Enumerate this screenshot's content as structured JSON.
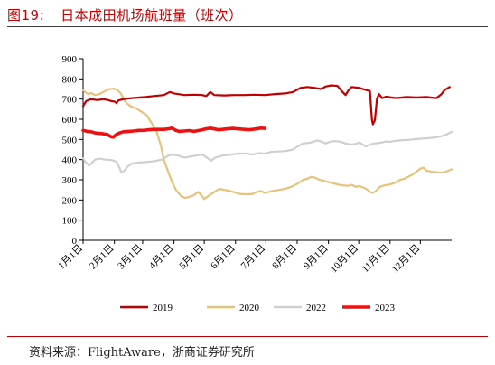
{
  "figure": {
    "number": "图19:",
    "title": "日本成田机场航班量（班次）",
    "source": "资料来源：FlightAware，浙商证券研究所"
  },
  "chart_data": {
    "type": "line",
    "title": "",
    "xlabel": "",
    "ylabel": "",
    "ylim": [
      0,
      900
    ],
    "yticks": [
      "0",
      "100",
      "200",
      "300",
      "400",
      "500",
      "600",
      "700",
      "800",
      "900"
    ],
    "xticks": [
      "1月1日",
      "2月1日",
      "3月1日",
      "4月1日",
      "5月1日",
      "6月1日",
      "7月1日",
      "8月1日",
      "9月1日",
      "10月1日",
      "11月1日",
      "12月1日"
    ],
    "grid": false,
    "legend_position": "bottom",
    "colors": {
      "2019": "#c00000",
      "2020": "#e6c27a",
      "2022": "#cfcfcf",
      "2023": "#ee1111"
    },
    "series": [
      {
        "name": "2019",
        "points": [
          [
            0,
            665
          ],
          [
            3,
            690
          ],
          [
            8,
            700
          ],
          [
            14,
            695
          ],
          [
            20,
            700
          ],
          [
            25,
            695
          ],
          [
            28,
            690
          ],
          [
            31,
            688
          ],
          [
            33,
            680
          ],
          [
            35,
            693
          ],
          [
            40,
            700
          ],
          [
            48,
            705
          ],
          [
            56,
            708
          ],
          [
            62,
            710
          ],
          [
            70,
            715
          ],
          [
            80,
            720
          ],
          [
            86,
            735
          ],
          [
            90,
            728
          ],
          [
            94,
            725
          ],
          [
            100,
            720
          ],
          [
            110,
            722
          ],
          [
            118,
            720
          ],
          [
            122,
            715
          ],
          [
            126,
            735
          ],
          [
            130,
            720
          ],
          [
            140,
            718
          ],
          [
            150,
            720
          ],
          [
            160,
            720
          ],
          [
            170,
            722
          ],
          [
            180,
            720
          ],
          [
            190,
            725
          ],
          [
            200,
            728
          ],
          [
            208,
            735
          ],
          [
            215,
            755
          ],
          [
            222,
            760
          ],
          [
            230,
            755
          ],
          [
            236,
            750
          ],
          [
            240,
            762
          ],
          [
            246,
            768
          ],
          [
            252,
            765
          ],
          [
            256,
            740
          ],
          [
            260,
            720
          ],
          [
            263,
            745
          ],
          [
            266,
            760
          ],
          [
            274,
            755
          ],
          [
            280,
            745
          ],
          [
            284,
            740
          ],
          [
            286,
            600
          ],
          [
            287,
            575
          ],
          [
            289,
            595
          ],
          [
            291,
            700
          ],
          [
            293,
            725
          ],
          [
            296,
            705
          ],
          [
            300,
            712
          ],
          [
            310,
            705
          ],
          [
            320,
            710
          ],
          [
            330,
            708
          ],
          [
            340,
            710
          ],
          [
            350,
            705
          ],
          [
            355,
            725
          ],
          [
            358,
            745
          ],
          [
            363,
            760
          ]
        ]
      },
      {
        "name": "2020",
        "points": [
          [
            0,
            745
          ],
          [
            2,
            735
          ],
          [
            5,
            725
          ],
          [
            8,
            730
          ],
          [
            12,
            720
          ],
          [
            16,
            725
          ],
          [
            20,
            735
          ],
          [
            25,
            748
          ],
          [
            30,
            752
          ],
          [
            34,
            745
          ],
          [
            37,
            730
          ],
          [
            40,
            705
          ],
          [
            43,
            680
          ],
          [
            47,
            665
          ],
          [
            52,
            655
          ],
          [
            57,
            640
          ],
          [
            63,
            620
          ],
          [
            68,
            580
          ],
          [
            73,
            535
          ],
          [
            77,
            470
          ],
          [
            80,
            400
          ],
          [
            85,
            330
          ],
          [
            88,
            290
          ],
          [
            92,
            250
          ],
          [
            97,
            220
          ],
          [
            101,
            210
          ],
          [
            105,
            215
          ],
          [
            110,
            225
          ],
          [
            114,
            240
          ],
          [
            117,
            225
          ],
          [
            120,
            205
          ],
          [
            124,
            220
          ],
          [
            130,
            240
          ],
          [
            135,
            255
          ],
          [
            140,
            250
          ],
          [
            145,
            245
          ],
          [
            150,
            238
          ],
          [
            155,
            230
          ],
          [
            162,
            228
          ],
          [
            168,
            230
          ],
          [
            172,
            240
          ],
          [
            176,
            245
          ],
          [
            180,
            235
          ],
          [
            184,
            240
          ],
          [
            188,
            245
          ],
          [
            194,
            250
          ],
          [
            200,
            255
          ],
          [
            206,
            265
          ],
          [
            212,
            280
          ],
          [
            218,
            300
          ],
          [
            222,
            305
          ],
          [
            226,
            315
          ],
          [
            230,
            310
          ],
          [
            234,
            300
          ],
          [
            238,
            295
          ],
          [
            242,
            290
          ],
          [
            246,
            285
          ],
          [
            250,
            280
          ],
          [
            254,
            275
          ],
          [
            258,
            272
          ],
          [
            262,
            270
          ],
          [
            266,
            275
          ],
          [
            270,
            265
          ],
          [
            274,
            268
          ],
          [
            278,
            260
          ],
          [
            282,
            250
          ],
          [
            284,
            240
          ],
          [
            287,
            235
          ],
          [
            290,
            245
          ],
          [
            294,
            265
          ],
          [
            298,
            272
          ],
          [
            302,
            275
          ],
          [
            306,
            280
          ],
          [
            310,
            288
          ],
          [
            314,
            300
          ],
          [
            318,
            305
          ],
          [
            322,
            315
          ],
          [
            326,
            325
          ],
          [
            330,
            340
          ],
          [
            334,
            355
          ],
          [
            337,
            360
          ],
          [
            340,
            345
          ],
          [
            345,
            340
          ],
          [
            350,
            338
          ],
          [
            354,
            335
          ],
          [
            358,
            338
          ],
          [
            362,
            345
          ],
          [
            365,
            352
          ]
        ]
      },
      {
        "name": "2022",
        "points": [
          [
            0,
            405
          ],
          [
            3,
            385
          ],
          [
            6,
            370
          ],
          [
            9,
            385
          ],
          [
            12,
            400
          ],
          [
            16,
            405
          ],
          [
            22,
            400
          ],
          [
            28,
            398
          ],
          [
            33,
            390
          ],
          [
            36,
            360
          ],
          [
            38,
            335
          ],
          [
            41,
            345
          ],
          [
            44,
            365
          ],
          [
            48,
            380
          ],
          [
            55,
            385
          ],
          [
            62,
            388
          ],
          [
            70,
            392
          ],
          [
            78,
            400
          ],
          [
            84,
            418
          ],
          [
            88,
            425
          ],
          [
            94,
            420
          ],
          [
            100,
            410
          ],
          [
            106,
            415
          ],
          [
            112,
            420
          ],
          [
            118,
            425
          ],
          [
            124,
            405
          ],
          [
            127,
            395
          ],
          [
            131,
            410
          ],
          [
            138,
            420
          ],
          [
            146,
            425
          ],
          [
            154,
            430
          ],
          [
            162,
            430
          ],
          [
            168,
            425
          ],
          [
            174,
            432
          ],
          [
            180,
            430
          ],
          [
            186,
            438
          ],
          [
            192,
            440
          ],
          [
            200,
            442
          ],
          [
            208,
            450
          ],
          [
            214,
            470
          ],
          [
            218,
            480
          ],
          [
            226,
            485
          ],
          [
            232,
            495
          ],
          [
            236,
            490
          ],
          [
            240,
            480
          ],
          [
            244,
            487
          ],
          [
            248,
            492
          ],
          [
            254,
            490
          ],
          [
            260,
            480
          ],
          [
            266,
            475
          ],
          [
            270,
            478
          ],
          [
            274,
            485
          ],
          [
            278,
            470
          ],
          [
            280,
            465
          ],
          [
            284,
            475
          ],
          [
            288,
            480
          ],
          [
            292,
            482
          ],
          [
            296,
            485
          ],
          [
            300,
            490
          ],
          [
            304,
            488
          ],
          [
            308,
            492
          ],
          [
            314,
            495
          ],
          [
            322,
            498
          ],
          [
            330,
            502
          ],
          [
            338,
            505
          ],
          [
            346,
            508
          ],
          [
            354,
            515
          ],
          [
            360,
            525
          ],
          [
            365,
            538
          ]
        ]
      },
      {
        "name": "2023",
        "points": [
          [
            0,
            545
          ],
          [
            4,
            540
          ],
          [
            8,
            538
          ],
          [
            12,
            532
          ],
          [
            16,
            530
          ],
          [
            20,
            528
          ],
          [
            24,
            525
          ],
          [
            27,
            515
          ],
          [
            30,
            512
          ],
          [
            33,
            525
          ],
          [
            36,
            532
          ],
          [
            40,
            538
          ],
          [
            45,
            540
          ],
          [
            50,
            542
          ],
          [
            55,
            545
          ],
          [
            60,
            545
          ],
          [
            65,
            548
          ],
          [
            70,
            550
          ],
          [
            75,
            550
          ],
          [
            80,
            550
          ],
          [
            85,
            553
          ],
          [
            88,
            556
          ],
          [
            92,
            545
          ],
          [
            95,
            540
          ],
          [
            100,
            542
          ],
          [
            105,
            544
          ],
          [
            110,
            540
          ],
          [
            114,
            544
          ],
          [
            118,
            548
          ],
          [
            122,
            553
          ],
          [
            126,
            556
          ],
          [
            130,
            552
          ],
          [
            134,
            548
          ],
          [
            138,
            550
          ],
          [
            142,
            552
          ],
          [
            148,
            555
          ],
          [
            154,
            552
          ],
          [
            160,
            550
          ],
          [
            164,
            548
          ],
          [
            168,
            550
          ],
          [
            172,
            553
          ],
          [
            176,
            556
          ],
          [
            180,
            555
          ]
        ]
      }
    ]
  }
}
